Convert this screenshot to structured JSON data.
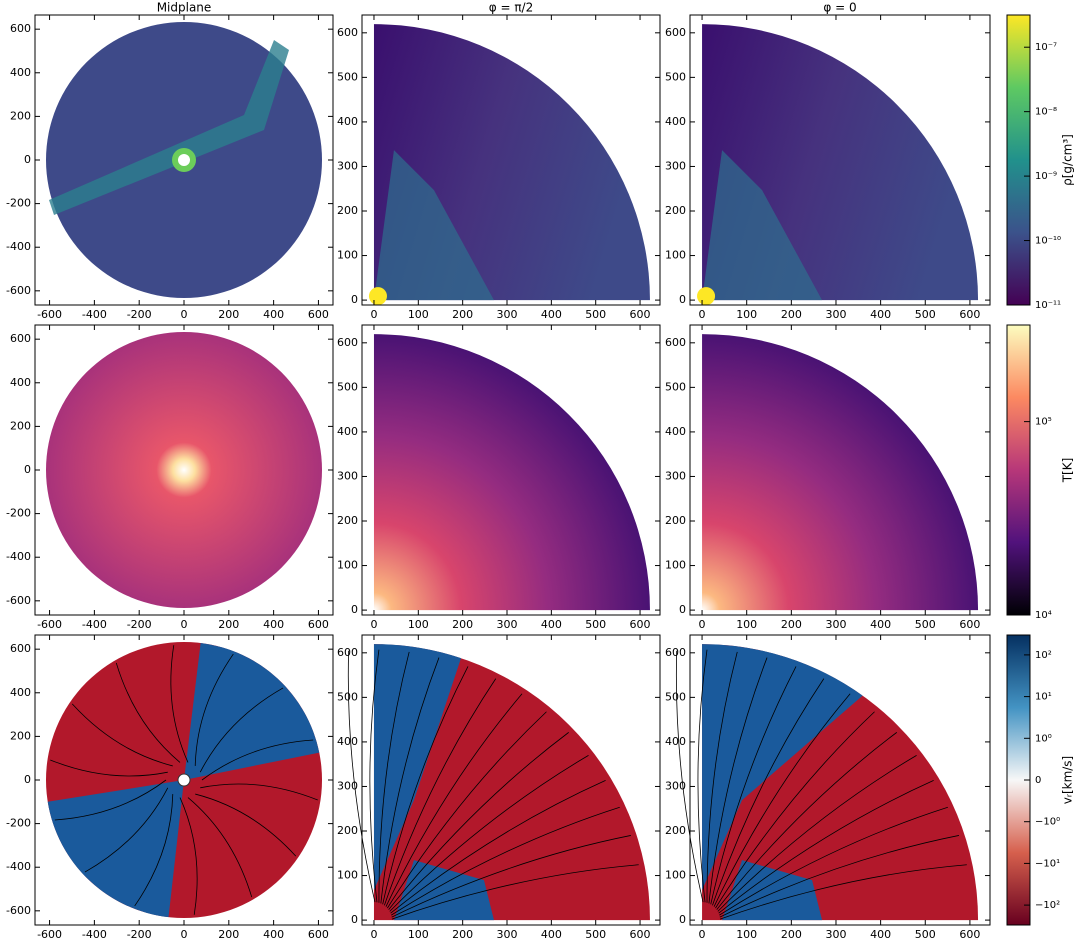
{
  "columns": [
    "Midplane",
    "φ = π/2",
    "φ = 0"
  ],
  "midplane_axes": {
    "xlim": [
      -665,
      665
    ],
    "ylim": [
      -665,
      665
    ],
    "xticks": [
      -600,
      -400,
      -200,
      0,
      200,
      400,
      600
    ],
    "yticks": [
      -600,
      -400,
      -200,
      0,
      200,
      400,
      600
    ]
  },
  "meridional_axes": {
    "xlim": [
      -27,
      645
    ],
    "ylim": [
      -11,
      640
    ],
    "xticks": [
      0,
      100,
      200,
      300,
      400,
      500,
      600
    ],
    "yticks": [
      0,
      100,
      200,
      300,
      400,
      500,
      600
    ]
  },
  "colorbars": [
    {
      "label": "ρ[g/cm³]",
      "scale": "log",
      "lim": [
        1e-11,
        3.16e-07
      ],
      "ticks": [
        {
          "value": 1e-07,
          "label": "10⁻⁷"
        },
        {
          "value": 1e-08,
          "label": "10⁻⁸"
        },
        {
          "value": 1e-09,
          "label": "10⁻⁹"
        },
        {
          "value": 1e-10,
          "label": "10⁻¹⁰"
        },
        {
          "value": 1e-11,
          "label": "10⁻¹¹"
        }
      ],
      "colors": [
        "#440154",
        "#3b528b",
        "#21918c",
        "#5ec962",
        "#fde725"
      ]
    },
    {
      "label": "T[K]",
      "scale": "log",
      "lim": [
        10000,
        316000
      ],
      "ticks": [
        {
          "value": 100000,
          "label": "10⁵"
        },
        {
          "value": 10000,
          "label": "10⁴"
        }
      ],
      "colors": [
        "#000004",
        "#51127c",
        "#b73779",
        "#fc8961",
        "#fcfdbf"
      ]
    },
    {
      "label": "vᵣ[km/s]",
      "scale": "symlog",
      "linthresh": 1,
      "lim": [
        -300,
        300
      ],
      "ticks": [
        {
          "value": 100,
          "label": "10²"
        },
        {
          "value": 10,
          "label": "10¹"
        },
        {
          "value": 1,
          "label": "10⁰"
        },
        0,
        {
          "value": -1,
          "label": "−10⁰"
        },
        {
          "value": -10,
          "label": "−10¹"
        },
        {
          "value": -100,
          "label": "−10²"
        }
      ],
      "colors": [
        "#67001f",
        "#d6604d",
        "#f7f7f7",
        "#4393c3",
        "#053061"
      ]
    }
  ]
}
